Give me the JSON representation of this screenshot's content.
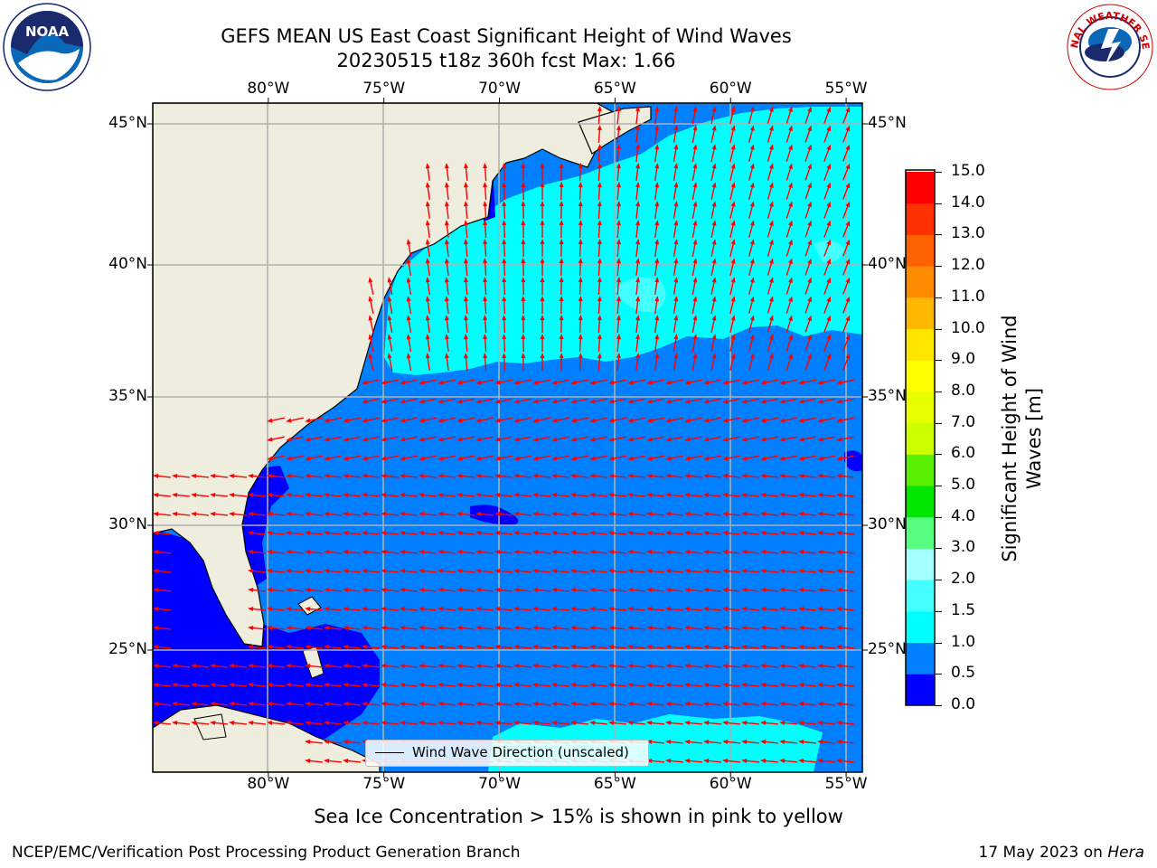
{
  "title": {
    "line1": "GEFS MEAN US East Coast Significant Height of Wind Waves",
    "line2": "20230515 t18z 360h fcst   Max: 1.66"
  },
  "map": {
    "lon_labels": [
      "80°W",
      "75°W",
      "70°W",
      "65°W",
      "60°W",
      "55°W"
    ],
    "lat_labels": [
      "45°N",
      "40°N",
      "35°N",
      "30°N",
      "25°N"
    ],
    "lon_values": [
      -80,
      -75,
      -70,
      -65,
      -60,
      -55
    ],
    "lat_values": [
      45,
      40,
      35,
      30,
      25
    ],
    "extent": {
      "lon_min": -85,
      "lon_max": -54.3,
      "lat_min": 20.5,
      "lat_max": 46
    },
    "land_color": "#efedde",
    "legend_label": "Wind Wave Direction (unscaled)",
    "arrow_color": "#ff0000"
  },
  "colorbar": {
    "label": "Significant Height of Wind Waves [m]",
    "label_line1": "Significant Height of Wind",
    "label_line2": "Waves [m]",
    "ticks": [
      "0.0",
      "0.5",
      "1.0",
      "1.5",
      "2.0",
      "3.0",
      "4.0",
      "5.0",
      "6.0",
      "7.0",
      "8.0",
      "9.0",
      "10.0",
      "11.0",
      "12.0",
      "13.0",
      "14.0",
      "15.0"
    ],
    "colors": [
      "#0000ff",
      "#0080ff",
      "#00ffff",
      "#44ffff",
      "#a6ffff",
      "#56ff80",
      "#00e600",
      "#58f000",
      "#ccff00",
      "#e8ff00",
      "#ffff00",
      "#ffe600",
      "#ffb800",
      "#ff8c00",
      "#ff6000",
      "#ff3000",
      "#ff0000"
    ]
  },
  "logos": {
    "noaa_text": "NOAA",
    "nws_text": "NATIONAL WEATHER SERVICE"
  },
  "ice_note": "Sea Ice Concentration > 15% is shown in pink to yellow",
  "footer": {
    "left": "NCEP/EMC/Verification Post Processing Product Generation Branch",
    "right_date": "17 May 2023 on ",
    "right_machine": "Hera"
  }
}
